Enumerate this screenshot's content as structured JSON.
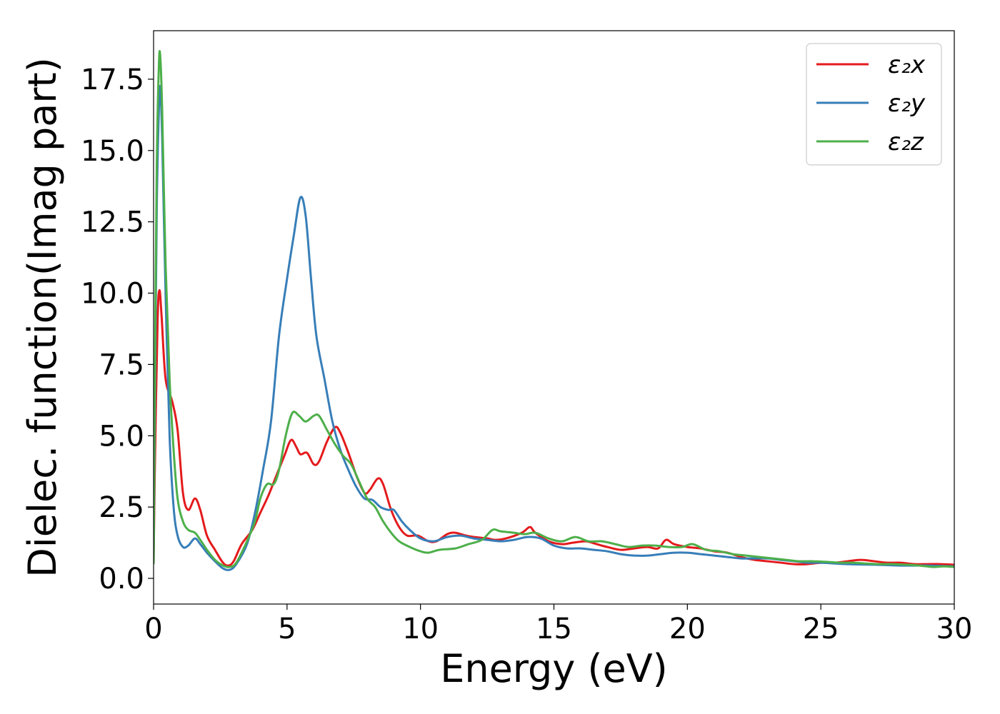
{
  "chart_data": {
    "type": "line",
    "xlabel": "Energy (eV)",
    "ylabel": "Dielec. function(Imag part)",
    "xlim": [
      0,
      30
    ],
    "ylim": [
      -0.9,
      19.2
    ],
    "xticks": [
      0,
      5,
      10,
      15,
      20,
      25,
      30
    ],
    "xtick_labels": [
      "0",
      "5",
      "10",
      "15",
      "20",
      "25",
      "30"
    ],
    "yticks": [
      0.0,
      2.5,
      5.0,
      7.5,
      10.0,
      12.5,
      15.0,
      17.5
    ],
    "ytick_labels": [
      "0.0",
      "2.5",
      "5.0",
      "7.5",
      "10.0",
      "12.5",
      "15.0",
      "17.5"
    ],
    "grid": false,
    "legend_position": "top-right",
    "series": [
      {
        "name": "ε₂x",
        "color": "#e41a1c",
        "points": [
          [
            0,
            0.5
          ],
          [
            0.05,
            4.0
          ],
          [
            0.15,
            9.0
          ],
          [
            0.22,
            10.1
          ],
          [
            0.3,
            9.2
          ],
          [
            0.45,
            7.0
          ],
          [
            0.7,
            6.2
          ],
          [
            0.9,
            5.2
          ],
          [
            1.1,
            3.0
          ],
          [
            1.3,
            2.4
          ],
          [
            1.55,
            2.8
          ],
          [
            1.75,
            2.4
          ],
          [
            2.0,
            1.5
          ],
          [
            2.3,
            1.0
          ],
          [
            2.6,
            0.55
          ],
          [
            2.8,
            0.45
          ],
          [
            3.0,
            0.6
          ],
          [
            3.3,
            1.2
          ],
          [
            3.7,
            1.7
          ],
          [
            4.0,
            2.3
          ],
          [
            4.3,
            2.9
          ],
          [
            4.6,
            3.6
          ],
          [
            4.9,
            4.3
          ],
          [
            5.15,
            4.85
          ],
          [
            5.35,
            4.6
          ],
          [
            5.5,
            4.35
          ],
          [
            5.75,
            4.4
          ],
          [
            6.0,
            4.0
          ],
          [
            6.2,
            4.1
          ],
          [
            6.5,
            4.8
          ],
          [
            6.8,
            5.3
          ],
          [
            7.0,
            5.1
          ],
          [
            7.3,
            4.4
          ],
          [
            7.6,
            3.6
          ],
          [
            7.9,
            3.0
          ],
          [
            8.1,
            3.1
          ],
          [
            8.4,
            3.5
          ],
          [
            8.6,
            3.3
          ],
          [
            8.9,
            2.4
          ],
          [
            9.2,
            1.8
          ],
          [
            9.5,
            1.5
          ],
          [
            9.9,
            1.5
          ],
          [
            10.3,
            1.3
          ],
          [
            10.6,
            1.3
          ],
          [
            11.0,
            1.55
          ],
          [
            11.3,
            1.6
          ],
          [
            11.7,
            1.5
          ],
          [
            12.0,
            1.45
          ],
          [
            12.5,
            1.4
          ],
          [
            12.8,
            1.35
          ],
          [
            13.2,
            1.4
          ],
          [
            13.8,
            1.6
          ],
          [
            14.1,
            1.8
          ],
          [
            14.3,
            1.6
          ],
          [
            14.8,
            1.3
          ],
          [
            15.3,
            1.2
          ],
          [
            15.7,
            1.25
          ],
          [
            16.2,
            1.3
          ],
          [
            16.6,
            1.2
          ],
          [
            17.0,
            1.1
          ],
          [
            17.5,
            1.0
          ],
          [
            18.0,
            1.05
          ],
          [
            18.5,
            1.1
          ],
          [
            18.9,
            1.05
          ],
          [
            19.2,
            1.35
          ],
          [
            19.5,
            1.2
          ],
          [
            20.0,
            1.1
          ],
          [
            20.5,
            1.05
          ],
          [
            21.0,
            0.95
          ],
          [
            21.5,
            0.9
          ],
          [
            22.0,
            0.75
          ],
          [
            22.5,
            0.65
          ],
          [
            23.0,
            0.6
          ],
          [
            23.5,
            0.55
          ],
          [
            24.0,
            0.5
          ],
          [
            24.5,
            0.5
          ],
          [
            25.0,
            0.55
          ],
          [
            25.5,
            0.55
          ],
          [
            26.0,
            0.6
          ],
          [
            26.5,
            0.65
          ],
          [
            27.0,
            0.6
          ],
          [
            27.5,
            0.55
          ],
          [
            28.0,
            0.55
          ],
          [
            28.5,
            0.5
          ],
          [
            29.0,
            0.5
          ],
          [
            29.5,
            0.5
          ],
          [
            30.0,
            0.48
          ]
        ]
      },
      {
        "name": "ε₂y",
        "color": "#377eb8",
        "points": [
          [
            0,
            0.5
          ],
          [
            0.05,
            6.0
          ],
          [
            0.12,
            13.0
          ],
          [
            0.2,
            16.5
          ],
          [
            0.25,
            17.2
          ],
          [
            0.32,
            15.5
          ],
          [
            0.45,
            10.0
          ],
          [
            0.6,
            5.0
          ],
          [
            0.75,
            2.5
          ],
          [
            0.9,
            1.5
          ],
          [
            1.1,
            1.1
          ],
          [
            1.3,
            1.15
          ],
          [
            1.55,
            1.4
          ],
          [
            1.75,
            1.2
          ],
          [
            2.0,
            0.9
          ],
          [
            2.3,
            0.6
          ],
          [
            2.6,
            0.35
          ],
          [
            2.85,
            0.3
          ],
          [
            3.1,
            0.5
          ],
          [
            3.5,
            1.2
          ],
          [
            3.8,
            2.3
          ],
          [
            4.1,
            3.8
          ],
          [
            4.4,
            5.5
          ],
          [
            4.7,
            8.5
          ],
          [
            5.0,
            10.5
          ],
          [
            5.25,
            12.0
          ],
          [
            5.5,
            13.35
          ],
          [
            5.7,
            12.7
          ],
          [
            5.9,
            10.5
          ],
          [
            6.1,
            8.5
          ],
          [
            6.4,
            7.0
          ],
          [
            6.7,
            5.5
          ],
          [
            7.0,
            4.5
          ],
          [
            7.3,
            3.8
          ],
          [
            7.6,
            3.2
          ],
          [
            7.9,
            2.8
          ],
          [
            8.2,
            2.75
          ],
          [
            8.5,
            2.5
          ],
          [
            8.8,
            2.4
          ],
          [
            9.0,
            2.4
          ],
          [
            9.3,
            2.0
          ],
          [
            9.6,
            1.7
          ],
          [
            10.0,
            1.4
          ],
          [
            10.5,
            1.3
          ],
          [
            11.0,
            1.45
          ],
          [
            11.5,
            1.5
          ],
          [
            12.0,
            1.4
          ],
          [
            12.5,
            1.35
          ],
          [
            13.0,
            1.3
          ],
          [
            13.5,
            1.35
          ],
          [
            14.0,
            1.45
          ],
          [
            14.5,
            1.4
          ],
          [
            15.0,
            1.15
          ],
          [
            15.5,
            1.05
          ],
          [
            16.0,
            1.05
          ],
          [
            16.5,
            1.0
          ],
          [
            17.0,
            0.95
          ],
          [
            17.5,
            0.85
          ],
          [
            18.0,
            0.8
          ],
          [
            18.5,
            0.8
          ],
          [
            19.0,
            0.85
          ],
          [
            19.5,
            0.9
          ],
          [
            20.0,
            0.9
          ],
          [
            20.5,
            0.85
          ],
          [
            21.0,
            0.8
          ],
          [
            21.5,
            0.75
          ],
          [
            22.0,
            0.7
          ],
          [
            22.5,
            0.7
          ],
          [
            23.0,
            0.7
          ],
          [
            23.5,
            0.65
          ],
          [
            24.0,
            0.6
          ],
          [
            24.5,
            0.55
          ],
          [
            25.0,
            0.55
          ],
          [
            26.0,
            0.5
          ],
          [
            27.0,
            0.48
          ],
          [
            28.0,
            0.45
          ],
          [
            29.0,
            0.45
          ],
          [
            30.0,
            0.42
          ]
        ]
      },
      {
        "name": "ε₂z",
        "color": "#4daf4a",
        "points": [
          [
            0,
            0.5
          ],
          [
            0.05,
            7.0
          ],
          [
            0.12,
            14.5
          ],
          [
            0.2,
            18.0
          ],
          [
            0.25,
            18.3
          ],
          [
            0.32,
            16.5
          ],
          [
            0.45,
            11.0
          ],
          [
            0.6,
            7.0
          ],
          [
            0.75,
            4.5
          ],
          [
            0.9,
            2.8
          ],
          [
            1.1,
            2.0
          ],
          [
            1.3,
            1.7
          ],
          [
            1.55,
            1.6
          ],
          [
            1.75,
            1.35
          ],
          [
            2.0,
            1.0
          ],
          [
            2.3,
            0.65
          ],
          [
            2.6,
            0.45
          ],
          [
            2.85,
            0.4
          ],
          [
            3.1,
            0.55
          ],
          [
            3.5,
            1.3
          ],
          [
            3.8,
            2.0
          ],
          [
            4.0,
            2.8
          ],
          [
            4.25,
            3.3
          ],
          [
            4.5,
            3.3
          ],
          [
            4.7,
            3.8
          ],
          [
            4.95,
            5.0
          ],
          [
            5.2,
            5.8
          ],
          [
            5.45,
            5.7
          ],
          [
            5.7,
            5.5
          ],
          [
            6.0,
            5.7
          ],
          [
            6.2,
            5.7
          ],
          [
            6.5,
            5.2
          ],
          [
            6.8,
            4.7
          ],
          [
            7.1,
            4.3
          ],
          [
            7.4,
            4.0
          ],
          [
            7.7,
            3.4
          ],
          [
            8.0,
            2.8
          ],
          [
            8.3,
            2.5
          ],
          [
            8.6,
            2.0
          ],
          [
            8.9,
            1.6
          ],
          [
            9.2,
            1.3
          ],
          [
            9.6,
            1.1
          ],
          [
            10.0,
            0.95
          ],
          [
            10.3,
            0.9
          ],
          [
            10.7,
            1.0
          ],
          [
            11.3,
            1.05
          ],
          [
            11.8,
            1.2
          ],
          [
            12.3,
            1.35
          ],
          [
            12.7,
            1.7
          ],
          [
            13.0,
            1.65
          ],
          [
            13.5,
            1.6
          ],
          [
            13.9,
            1.55
          ],
          [
            14.3,
            1.6
          ],
          [
            14.8,
            1.4
          ],
          [
            15.3,
            1.3
          ],
          [
            15.8,
            1.45
          ],
          [
            16.3,
            1.3
          ],
          [
            16.8,
            1.3
          ],
          [
            17.3,
            1.2
          ],
          [
            17.8,
            1.1
          ],
          [
            18.3,
            1.15
          ],
          [
            18.8,
            1.15
          ],
          [
            19.3,
            1.1
          ],
          [
            19.8,
            1.1
          ],
          [
            20.2,
            1.2
          ],
          [
            20.7,
            1.0
          ],
          [
            21.2,
            0.95
          ],
          [
            21.7,
            0.85
          ],
          [
            22.2,
            0.8
          ],
          [
            22.7,
            0.75
          ],
          [
            23.2,
            0.7
          ],
          [
            23.7,
            0.65
          ],
          [
            24.2,
            0.6
          ],
          [
            24.7,
            0.6
          ],
          [
            25.2,
            0.58
          ],
          [
            25.7,
            0.55
          ],
          [
            26.2,
            0.55
          ],
          [
            26.7,
            0.52
          ],
          [
            27.2,
            0.5
          ],
          [
            27.7,
            0.5
          ],
          [
            28.2,
            0.48
          ],
          [
            28.7,
            0.45
          ],
          [
            29.2,
            0.4
          ],
          [
            29.6,
            0.42
          ],
          [
            30.0,
            0.4
          ]
        ]
      }
    ]
  }
}
